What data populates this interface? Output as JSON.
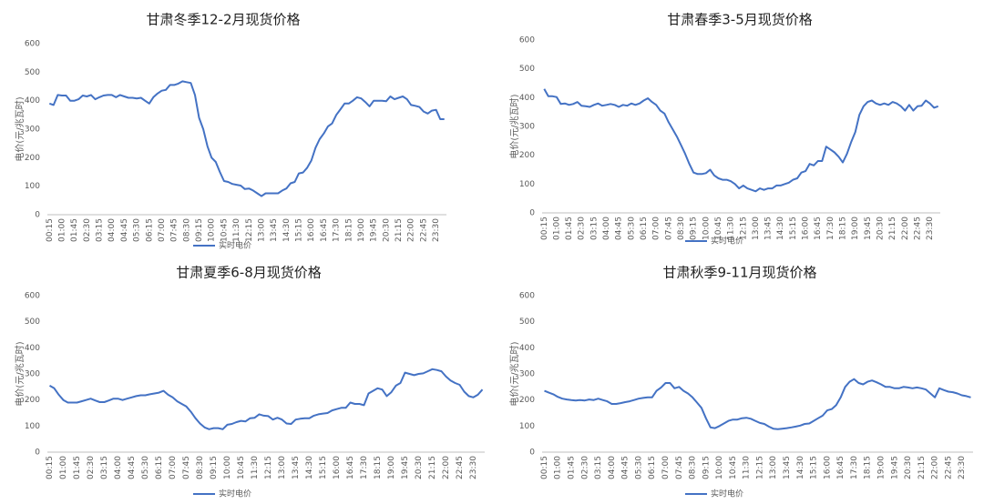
{
  "chart_data": [
    {
      "type": "line",
      "title": "甘肃冬季12-2月现货价格",
      "y_label": "电价(元/兆瓦时)",
      "categories": [
        "00:15",
        null,
        null,
        "01:00",
        null,
        null,
        "01:45",
        null,
        null,
        "02:30",
        null,
        null,
        "03:15",
        null,
        null,
        "04:00",
        null,
        null,
        "04:45",
        null,
        null,
        "05:30",
        null,
        null,
        "06:15",
        null,
        null,
        "07:00",
        null,
        null,
        "07:45",
        null,
        null,
        "08:30",
        null,
        null,
        "09:15",
        null,
        null,
        "10:00",
        null,
        null,
        "10:45",
        null,
        null,
        "11:30",
        null,
        null,
        "12:15",
        null,
        null,
        "13:00",
        null,
        null,
        "13:45",
        null,
        null,
        "14:30",
        null,
        null,
        "15:15",
        null,
        null,
        "16:00",
        null,
        null,
        "16:45",
        null,
        null,
        "17:30",
        null,
        null,
        "18:15",
        null,
        null,
        "19:00",
        null,
        null,
        "19:45",
        null,
        null,
        "20:30",
        null,
        null,
        "21:15",
        null,
        null,
        "22:00",
        null,
        null,
        "22:45",
        null,
        null,
        "23:30",
        null,
        null
      ],
      "series": [
        {
          "name": "实时电价",
          "color": "#4472c4",
          "values": [
            390,
            385,
            420,
            418,
            418,
            400,
            400,
            405,
            418,
            415,
            420,
            405,
            412,
            418,
            420,
            420,
            412,
            420,
            415,
            410,
            410,
            408,
            410,
            400,
            390,
            412,
            425,
            435,
            438,
            455,
            455,
            460,
            468,
            465,
            462,
            420,
            340,
            300,
            240,
            200,
            185,
            150,
            118,
            115,
            108,
            105,
            102,
            90,
            92,
            85,
            75,
            65,
            75,
            75,
            75,
            75,
            85,
            92,
            110,
            115,
            145,
            148,
            165,
            190,
            235,
            265,
            285,
            310,
            320,
            350,
            370,
            390,
            390,
            400,
            412,
            408,
            395,
            380,
            400,
            400,
            400,
            398,
            415,
            405,
            410,
            415,
            405,
            385,
            382,
            378,
            362,
            355,
            365,
            368,
            335,
            335
          ]
        }
      ],
      "ylim": [
        0,
        600
      ],
      "yticks": [
        0,
        100,
        200,
        300,
        400,
        500,
        600
      ],
      "grid": false
    },
    {
      "type": "line",
      "title": "甘肃春季3-5月现货价格",
      "y_label": "电价(元/兆瓦时)",
      "categories": [
        "00:15",
        null,
        null,
        "01:00",
        null,
        null,
        "01:45",
        null,
        null,
        "02:30",
        null,
        null,
        "03:15",
        null,
        null,
        "04:00",
        null,
        null,
        "04:45",
        null,
        null,
        "05:30",
        null,
        null,
        "06:15",
        null,
        null,
        "07:00",
        null,
        null,
        "07:45",
        null,
        null,
        "08:30",
        null,
        null,
        "09:15",
        null,
        null,
        "10:00",
        null,
        null,
        "10:45",
        null,
        null,
        "11:30",
        null,
        null,
        "12:15",
        null,
        null,
        "13:00",
        null,
        null,
        "13:45",
        null,
        null,
        "14:30",
        null,
        null,
        "15:15",
        null,
        null,
        "16:00",
        null,
        null,
        "16:45",
        null,
        null,
        "17:30",
        null,
        null,
        "18:15",
        null,
        null,
        "19:00",
        null,
        null,
        "19:45",
        null,
        null,
        "20:30",
        null,
        null,
        "21:15",
        null,
        null,
        "22:00",
        null,
        null,
        "22:45",
        null,
        null,
        "23:30",
        null,
        null
      ],
      "series": [
        {
          "name": "实时电价",
          "color": "#4472c4",
          "values": [
            430,
            405,
            405,
            402,
            378,
            380,
            375,
            378,
            385,
            372,
            370,
            368,
            375,
            380,
            372,
            375,
            378,
            375,
            368,
            375,
            372,
            380,
            375,
            380,
            390,
            398,
            385,
            375,
            355,
            345,
            315,
            290,
            265,
            235,
            205,
            170,
            140,
            135,
            135,
            138,
            150,
            130,
            120,
            115,
            115,
            110,
            100,
            85,
            95,
            85,
            80,
            75,
            85,
            80,
            85,
            85,
            95,
            95,
            100,
            105,
            115,
            120,
            140,
            145,
            170,
            165,
            180,
            180,
            230,
            220,
            210,
            195,
            175,
            205,
            245,
            280,
            340,
            370,
            385,
            390,
            380,
            375,
            380,
            375,
            385,
            380,
            370,
            355,
            375,
            355,
            370,
            372,
            390,
            380,
            365,
            370
          ]
        }
      ],
      "ylim": [
        0,
        600
      ],
      "yticks": [
        0,
        100,
        200,
        300,
        400,
        500,
        600
      ],
      "grid": false
    },
    {
      "type": "line",
      "title": "甘肃夏季6-8月现货价格",
      "y_label": "电价(元/兆瓦时)",
      "categories": [
        "00:15",
        null,
        null,
        "01:00",
        null,
        null,
        "01:45",
        null,
        null,
        "02:30",
        null,
        null,
        "03:15",
        null,
        null,
        "04:00",
        null,
        null,
        "04:45",
        null,
        null,
        "05:30",
        null,
        null,
        "06:15",
        null,
        null,
        "07:00",
        null,
        null,
        "07:45",
        null,
        null,
        "08:30",
        null,
        null,
        "09:15",
        null,
        null,
        "10:00",
        null,
        null,
        "10:45",
        null,
        null,
        "11:30",
        null,
        null,
        "12:15",
        null,
        null,
        "13:00",
        null,
        null,
        "13:45",
        null,
        null,
        "14:30",
        null,
        null,
        "15:15",
        null,
        null,
        "16:00",
        null,
        null,
        "16:45",
        null,
        null,
        "17:30",
        null,
        null,
        "18:15",
        null,
        null,
        "19:00",
        null,
        null,
        "19:45",
        null,
        null,
        "20:30",
        null,
        null,
        "21:15",
        null,
        null,
        "22:00",
        null,
        null,
        "22:45",
        null,
        null,
        "23:30",
        null,
        null
      ],
      "series": [
        {
          "name": "实时电价",
          "color": "#4472c4",
          "values": [
            255,
            245,
            220,
            200,
            190,
            190,
            190,
            195,
            200,
            205,
            198,
            192,
            192,
            198,
            205,
            205,
            200,
            205,
            210,
            215,
            218,
            218,
            222,
            225,
            228,
            235,
            220,
            210,
            195,
            185,
            175,
            155,
            130,
            110,
            95,
            88,
            92,
            92,
            88,
            105,
            108,
            115,
            120,
            118,
            130,
            132,
            145,
            140,
            138,
            125,
            132,
            125,
            110,
            108,
            125,
            128,
            130,
            130,
            140,
            145,
            148,
            150,
            160,
            165,
            170,
            170,
            190,
            185,
            185,
            180,
            225,
            235,
            245,
            240,
            215,
            230,
            255,
            265,
            305,
            300,
            295,
            300,
            302,
            310,
            318,
            315,
            310,
            290,
            275,
            265,
            258,
            232,
            215,
            210,
            220,
            240
          ]
        }
      ],
      "ylim": [
        0,
        600
      ],
      "yticks": [
        0,
        100,
        200,
        300,
        400,
        500,
        600
      ],
      "grid": false
    },
    {
      "type": "line",
      "title": "甘肃秋季9-11月现货价格",
      "y_label": "电价(元/兆瓦时)",
      "categories": [
        "00:15",
        null,
        null,
        "01:00",
        null,
        null,
        "01:45",
        null,
        null,
        "02:30",
        null,
        null,
        "03:15",
        null,
        null,
        "04:00",
        null,
        null,
        "04:45",
        null,
        null,
        "05:30",
        null,
        null,
        "06:15",
        null,
        null,
        "07:00",
        null,
        null,
        "07:45",
        null,
        null,
        "08:30",
        null,
        null,
        "09:15",
        null,
        null,
        "10:00",
        null,
        null,
        "10:45",
        null,
        null,
        "11:30",
        null,
        null,
        "12:15",
        null,
        null,
        "13:00",
        null,
        null,
        "13:45",
        null,
        null,
        "14:30",
        null,
        null,
        "15:15",
        null,
        null,
        "16:00",
        null,
        null,
        "16:45",
        null,
        null,
        "17:30",
        null,
        null,
        "18:15",
        null,
        null,
        "19:00",
        null,
        null,
        "19:45",
        null,
        null,
        "20:30",
        null,
        null,
        "21:15",
        null,
        null,
        "22:00",
        null,
        null,
        "22:45",
        null,
        null,
        "23:30",
        null,
        null
      ],
      "series": [
        {
          "name": "实时电价",
          "color": "#4472c4",
          "values": [
            235,
            228,
            222,
            212,
            205,
            202,
            200,
            198,
            200,
            198,
            202,
            200,
            205,
            200,
            195,
            185,
            185,
            188,
            192,
            195,
            200,
            205,
            208,
            210,
            210,
            235,
            248,
            265,
            265,
            245,
            250,
            235,
            225,
            210,
            190,
            170,
            130,
            95,
            92,
            100,
            110,
            120,
            125,
            125,
            130,
            132,
            128,
            120,
            112,
            108,
            98,
            90,
            88,
            90,
            92,
            95,
            98,
            102,
            108,
            110,
            120,
            130,
            140,
            160,
            165,
            180,
            210,
            250,
            270,
            280,
            265,
            260,
            270,
            275,
            268,
            260,
            250,
            250,
            245,
            245,
            250,
            248,
            245,
            248,
            245,
            240,
            225,
            210,
            245,
            238,
            232,
            230,
            225,
            218,
            215,
            210
          ]
        }
      ],
      "ylim": [
        0,
        600
      ],
      "yticks": [
        0,
        100,
        200,
        300,
        400,
        500,
        600
      ],
      "grid": false
    }
  ]
}
